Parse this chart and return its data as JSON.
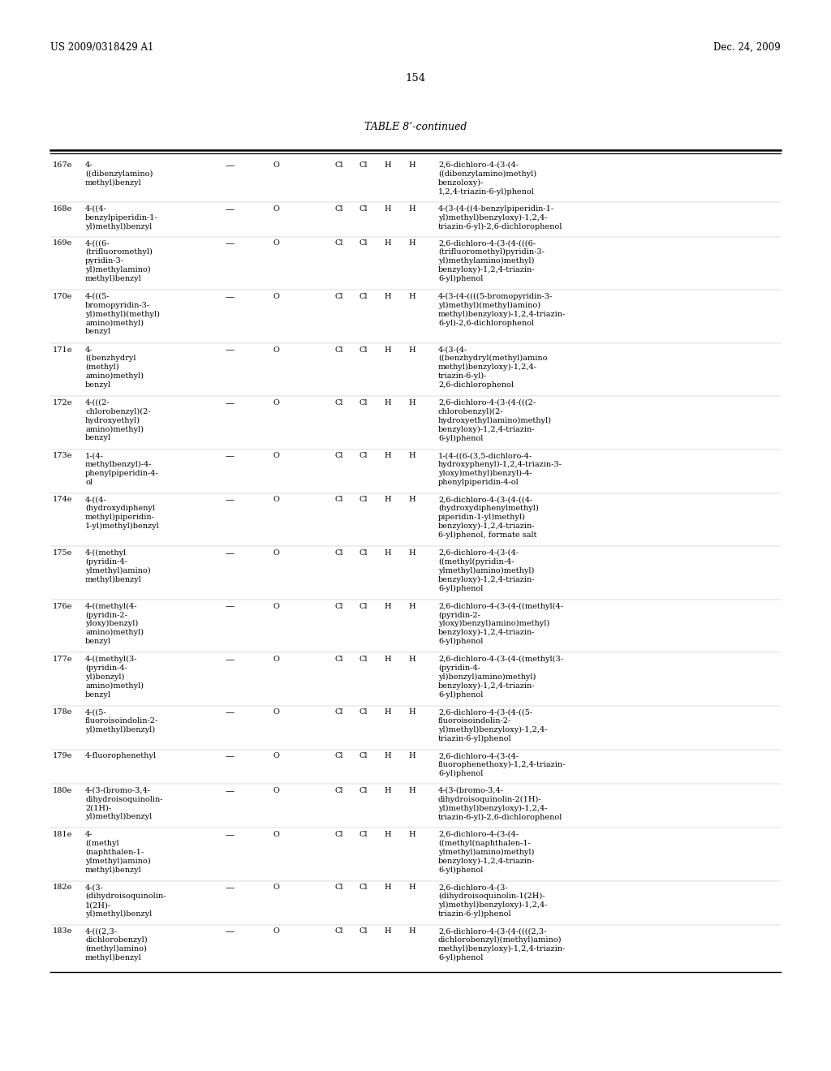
{
  "header_left": "US 2009/0318429 A1",
  "header_right": "Dec. 24, 2009",
  "page_number": "154",
  "table_title": "TABLE 8’-continued",
  "background_color": "#ffffff",
  "text_color": "#000000",
  "font_size": 7.0,
  "header_font_size": 8.5,
  "title_font_size": 9.0,
  "rows": [
    {
      "ex": "167e",
      "r1": "4-\n((dibenzylamino)\nmethyl)benzyl",
      "r2": "—",
      "r3": "O",
      "r4": "Cl",
      "r5": "Cl",
      "r6": "H",
      "r7": "H",
      "name": "2,6-dichloro-4-(3-(4-\n((dibenzylamino)methyl)\nbenzoloxy)-\n1,2,4-triazin-6-yl)phenol"
    },
    {
      "ex": "168e",
      "r1": "4-((4-\nbenzylpiperidin-1-\nyl)methyl)benzyl",
      "r2": "—",
      "r3": "O",
      "r4": "Cl",
      "r5": "Cl",
      "r6": "H",
      "r7": "H",
      "name": "4-(3-(4-((4-benzylpiperidin-1-\nyl)methyl)benzyloxy)-1,2,4-\ntriazin-6-yl)-2,6-dichlorophenol"
    },
    {
      "ex": "169e",
      "r1": "4-(((6-\n(trifluoromethyl)\npyridin-3-\nyl)methylamino)\nmethyl)benzyl",
      "r2": "—",
      "r3": "O",
      "r4": "Cl",
      "r5": "Cl",
      "r6": "H",
      "r7": "H",
      "name": "2,6-dichloro-4-(3-(4-(((6-\n(trifluoromethyl)pyridin-3-\nyl)methylamino)methyl)\nbenzyloxy)-1,2,4-triazin-\n6-yl)phenol"
    },
    {
      "ex": "170e",
      "r1": "4-(((5-\nbromopyridin-3-\nyl)methyl)(methyl)\namino)methyl)\nbenzyl",
      "r2": "—",
      "r3": "O",
      "r4": "Cl",
      "r5": "Cl",
      "r6": "H",
      "r7": "H",
      "name": "4-(3-(4-((((5-bromopyridin-3-\nyl)methyl)(methyl)amino)\nmethyl)benzyloxy)-1,2,4-triazin-\n6-yl)-2,6-dichlorophenol"
    },
    {
      "ex": "171e",
      "r1": "4-\n((benzhydryl\n(methyl)\namino)methyl)\nbenzyl",
      "r2": "—",
      "r3": "O",
      "r4": "Cl",
      "r5": "Cl",
      "r6": "H",
      "r7": "H",
      "name": "4-(3-(4-\n((benzhydryl(methyl)amino\nmethyl)benzyloxy)-1,2,4-\ntriazin-6-yl)-\n2,6-dichlorophenol"
    },
    {
      "ex": "172e",
      "r1": "4-(((2-\nchlorobenzyl)(2-\nhydroxyethyl)\namino)methyl)\nbenzyl",
      "r2": "—",
      "r3": "O",
      "r4": "Cl",
      "r5": "Cl",
      "r6": "H",
      "r7": "H",
      "name": "2,6-dichloro-4-(3-(4-(((2-\nchlorobenzyl)(2-\nhydroxyethyl)amino)methyl)\nbenzyloxy)-1,2,4-triazin-\n6-yl)phenol"
    },
    {
      "ex": "173e",
      "r1": "1-(4-\nmethylbenzyl)-4-\nphenylpiperidin-4-\nol",
      "r2": "—",
      "r3": "O",
      "r4": "Cl",
      "r5": "Cl",
      "r6": "H",
      "r7": "H",
      "name": "1-(4-((6-(3,5-dichloro-4-\nhydroxyphenyl)-1,2,4-triazin-3-\nyloxy)methyl)benzyl)-4-\nphenylpiperidin-4-ol"
    },
    {
      "ex": "174e",
      "r1": "4-((4-\n(hydroxydiphenyl\nmethyl)piperidin-\n1-yl)methyl)benzyl",
      "r2": "—",
      "r3": "O",
      "r4": "Cl",
      "r5": "Cl",
      "r6": "H",
      "r7": "H",
      "name": "2,6-dichloro-4-(3-(4-((4-\n(hydroxydiphenylmethyl)\npiperidin-1-yl)methyl)\nbenzyloxy)-1,2,4-triazin-\n6-yl)phenol, formate salt"
    },
    {
      "ex": "175e",
      "r1": "4-((methyl\n(pyridin-4-\nylmethyl)amino)\nmethyl)benzyl",
      "r2": "—",
      "r3": "O",
      "r4": "Cl",
      "r5": "Cl",
      "r6": "H",
      "r7": "H",
      "name": "2,6-dichloro-4-(3-(4-\n((methyl(pyridin-4-\nylmethyl)amino)methyl)\nbenzyloxy)-1,2,4-triazin-\n6-yl)phenol"
    },
    {
      "ex": "176e",
      "r1": "4-((methyl(4-\n(pyridin-2-\nyloxy)benzyl)\namino)methyl)\nbenzyl",
      "r2": "—",
      "r3": "O",
      "r4": "Cl",
      "r5": "Cl",
      "r6": "H",
      "r7": "H",
      "name": "2,6-dichloro-4-(3-(4-((methyl(4-\n(pyridin-2-\nyloxy)benzyl)amino)methyl)\nbenzyloxy)-1,2,4-triazin-\n6-yl)phenol"
    },
    {
      "ex": "177e",
      "r1": "4-((methyl(3-\n(pyridin-4-\nyl)benzyl)\namino)methyl)\nbenzyl",
      "r2": "—",
      "r3": "O",
      "r4": "Cl",
      "r5": "Cl",
      "r6": "H",
      "r7": "H",
      "name": "2,6-dichloro-4-(3-(4-((methyl(3-\n(pyridin-4-\nyl)benzyl)amino)methyl)\nbenzyloxy)-1,2,4-triazin-\n6-yl)phenol"
    },
    {
      "ex": "178e",
      "r1": "4-((5-\nfluoroisoindolin-2-\nyl)methyl)benzyl)",
      "r2": "—",
      "r3": "O",
      "r4": "Cl",
      "r5": "Cl",
      "r6": "H",
      "r7": "H",
      "name": "2,6-dichloro-4-(3-(4-((5-\nfluoroisoindolin-2-\nyl)methyl)benzyloxy)-1,2,4-\ntriazin-6-yl)phenol"
    },
    {
      "ex": "179e",
      "r1": "4-fluorophenethyl",
      "r2": "—",
      "r3": "O",
      "r4": "Cl",
      "r5": "Cl",
      "r6": "H",
      "r7": "H",
      "name": "2,6-dichloro-4-(3-(4-\nfluorophenethoxy)-1,2,4-triazin-\n6-yl)phenol"
    },
    {
      "ex": "180e",
      "r1": "4-(3-(bromo-3,4-\ndihydroisoquinolin-\n2(1H)-\nyl)methyl)benzyl",
      "r2": "—",
      "r3": "O",
      "r4": "Cl",
      "r5": "Cl",
      "r6": "H",
      "r7": "H",
      "name": "4-(3-(bromo-3,4-\ndihydroisoquinolin-2(1H)-\nyl)methyl)benzyloxy)-1,2,4-\ntriazin-6-yl)-2,6-dichlorophenol"
    },
    {
      "ex": "181e",
      "r1": "4-\n((methyl\n(naphthalen-1-\nylmethyl)amino)\nmethyl)benzyl",
      "r2": "—",
      "r3": "O",
      "r4": "Cl",
      "r5": "Cl",
      "r6": "H",
      "r7": "H",
      "name": "2,6-dichloro-4-(3-(4-\n((methyl(naphthalen-1-\nylmethyl)amino)methyl)\nbenzyloxy)-1,2,4-triazin-\n6-yl)phenol"
    },
    {
      "ex": "182e",
      "r1": "4-(3-\n(dihydroisoquinolin-\n1(2H)-\nyl)methyl)benzyl",
      "r2": "—",
      "r3": "O",
      "r4": "Cl",
      "r5": "Cl",
      "r6": "H",
      "r7": "H",
      "name": "2,6-dichloro-4-(3-\n(dihydroisoquinolin-1(2H)-\nyl)methyl)benzyloxy)-1,2,4-\ntriazin-6-yl)phenol"
    },
    {
      "ex": "183e",
      "r1": "4-(((2,3-\ndichlorobenzyl)\n(methyl)amino)\nmethyl)benzyl",
      "r2": "—",
      "r3": "O",
      "r4": "Cl",
      "r5": "Cl",
      "r6": "H",
      "r7": "H",
      "name": "2,6-dichloro-4-(3-(4-((((2,3-\ndichlorobenzyl)(methyl)amino)\nmethyl)benzyloxy)-1,2,4-triazin-\n6-yl)phenol"
    }
  ]
}
